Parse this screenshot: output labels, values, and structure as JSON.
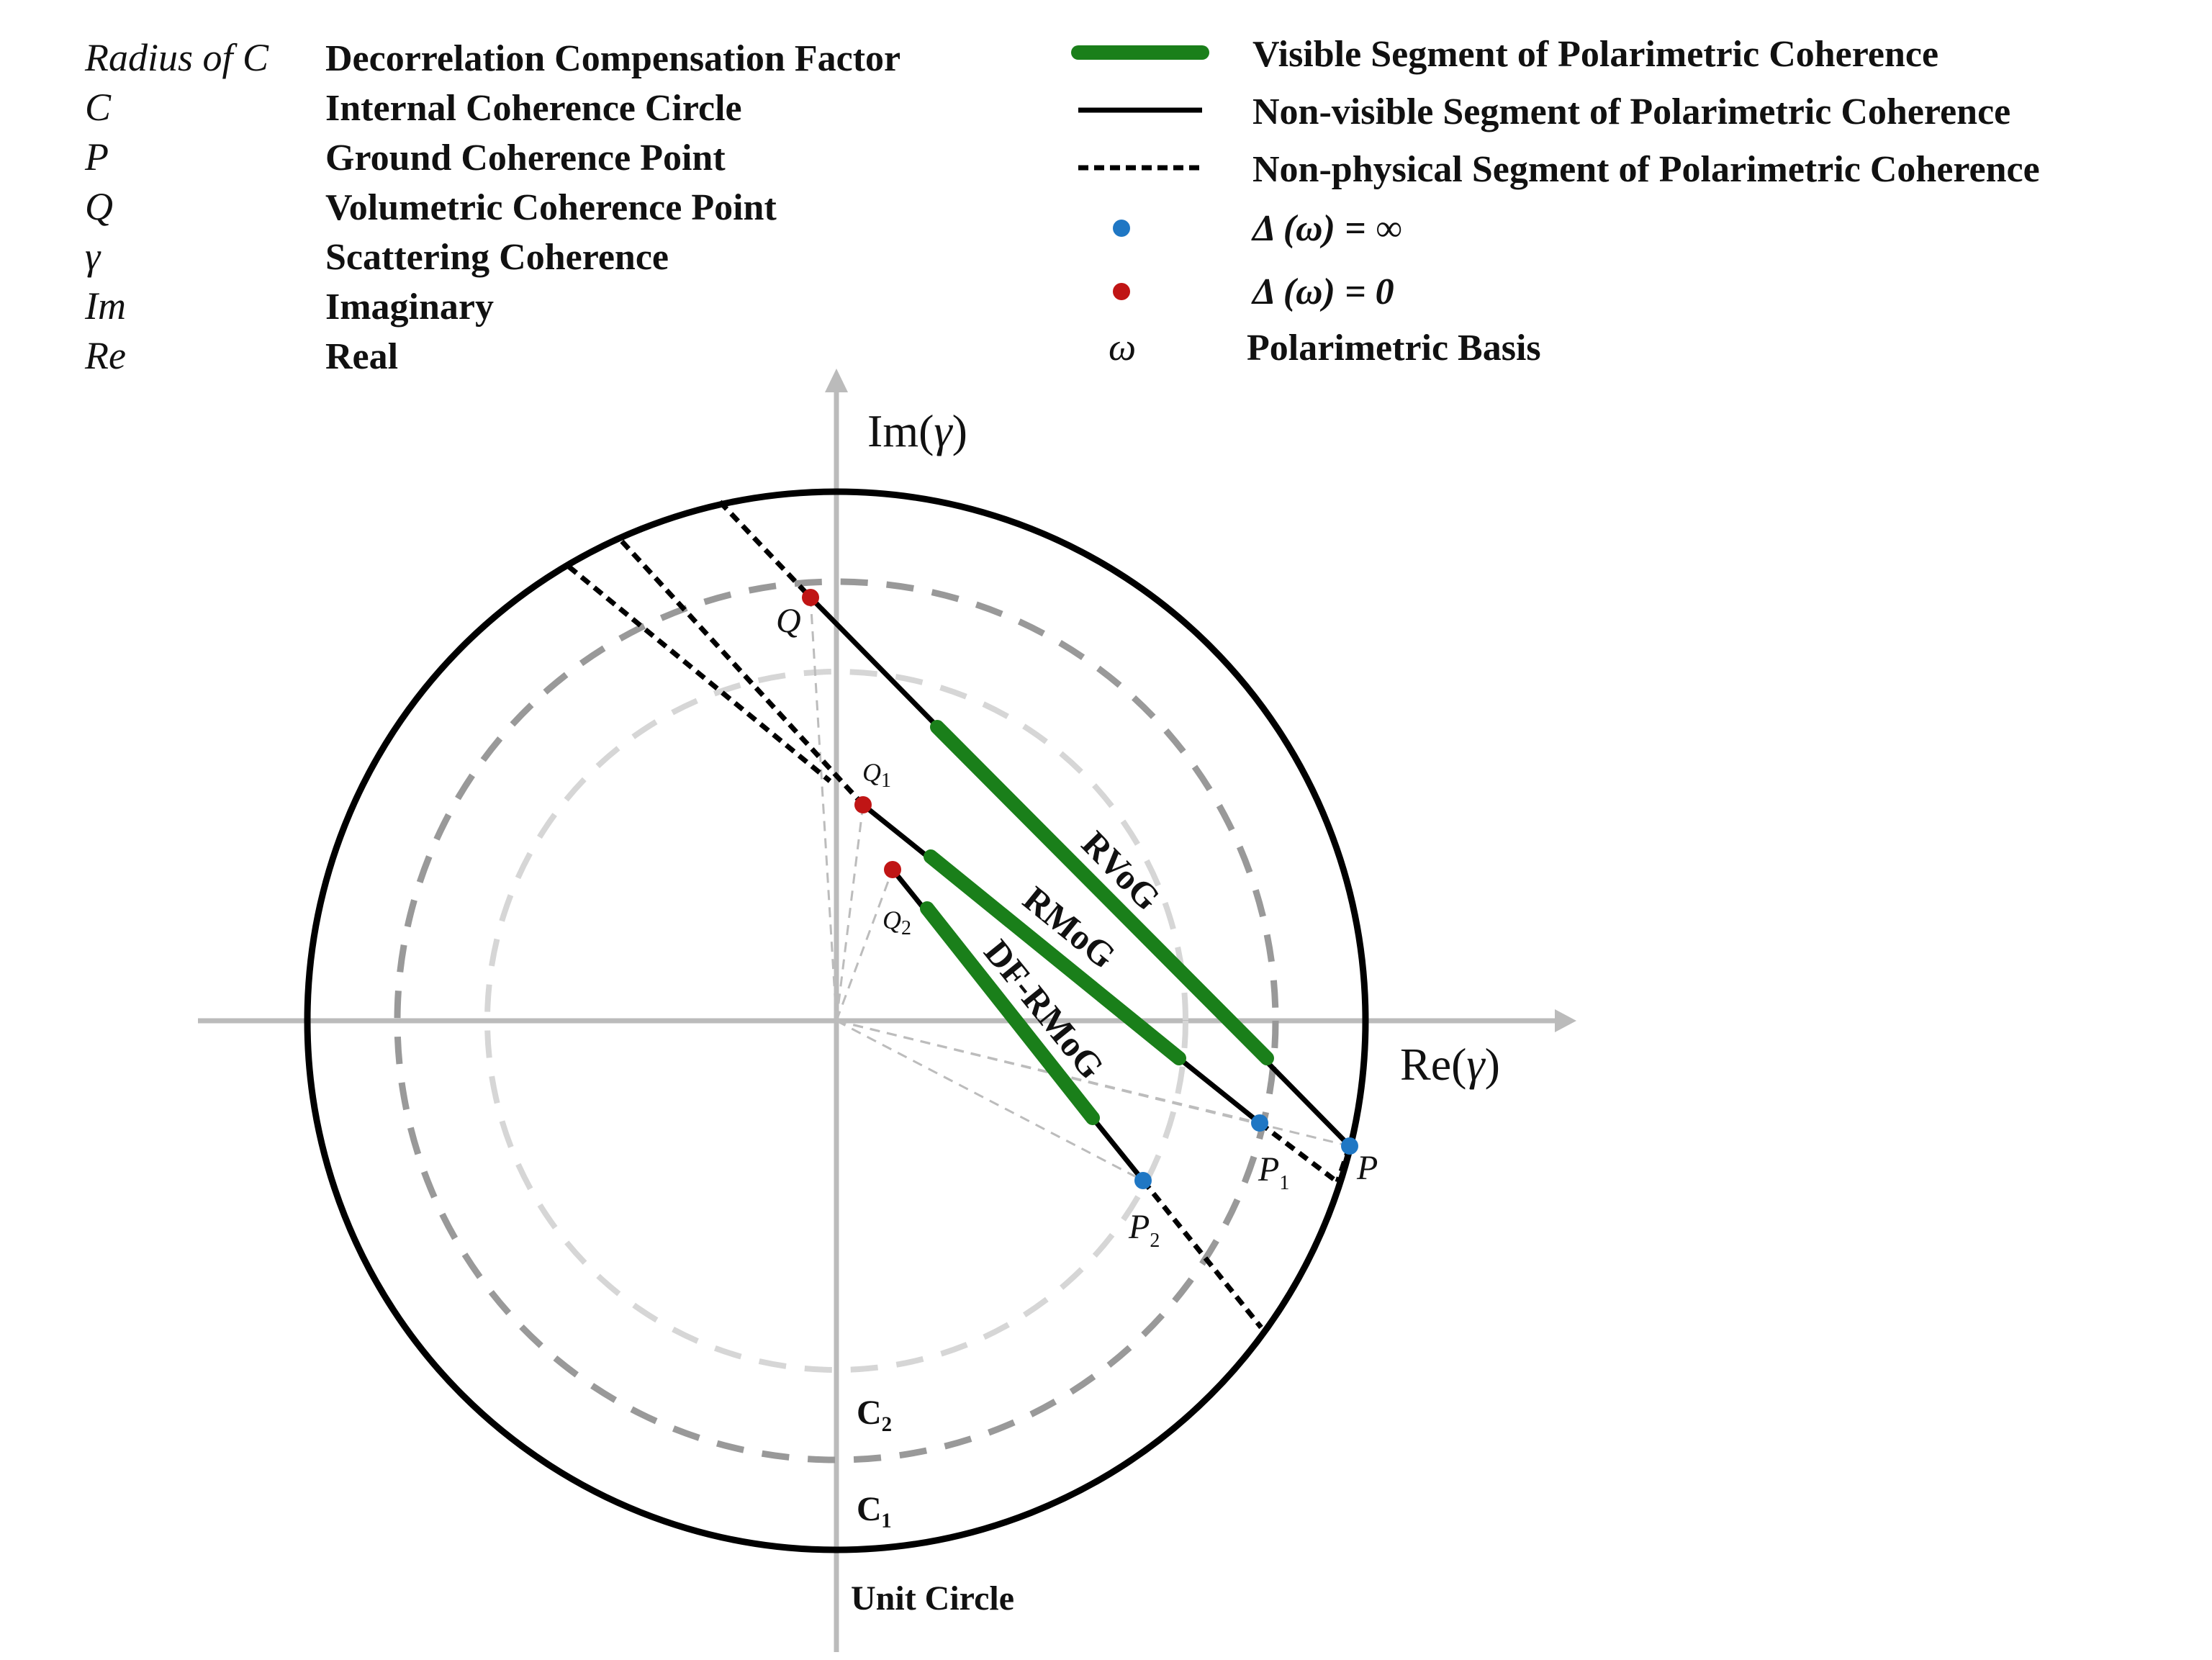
{
  "legend_left": [
    {
      "symbol": "Radius of C",
      "description": "Decorrelation Compensation Factor"
    },
    {
      "symbol": "C",
      "description": "Internal Coherence Circle"
    },
    {
      "symbol": "P",
      "description": "Ground Coherence Point"
    },
    {
      "symbol": "Q",
      "description": "Volumetric Coherence Point"
    },
    {
      "symbol": "γ",
      "description": "Scattering Coherence"
    },
    {
      "symbol": "Im",
      "description": "Imaginary"
    },
    {
      "symbol": "Re",
      "description": "Real"
    }
  ],
  "legend_right": [
    {
      "marker": "green-thick-line",
      "description": "Visible Segment of Polarimetric Coherence"
    },
    {
      "marker": "black-solid-line",
      "description": "Non-visible Segment of Polarimetric Coherence"
    },
    {
      "marker": "black-dashed-line",
      "description": "Non-physical Segment of Polarimetric Coherence"
    },
    {
      "marker": "blue-dot",
      "description": "Δ (ω) = ∞"
    },
    {
      "marker": "red-dot",
      "description": "Δ (ω) = 0"
    },
    {
      "marker": "omega-symbol",
      "symbol": "ω",
      "description": "Polarimetric Basis"
    }
  ],
  "axes": {
    "x_prefix": "Re(",
    "x_var": "γ",
    "x_suffix": ")",
    "y_prefix": "Im(",
    "y_var": "γ",
    "y_suffix": ")"
  },
  "circles": [
    {
      "label": "Unit Circle"
    },
    {
      "label": "C₁"
    },
    {
      "label": "C₂"
    }
  ],
  "models": [
    "RVoG",
    "RMoG",
    "DF-RMoG"
  ],
  "points": {
    "Q": "Q",
    "Q1_main": "Q",
    "Q1_sub": "1",
    "Q2_main": "Q",
    "Q2_sub": "2",
    "P": "P",
    "P1_main": "P",
    "P1_sub": "1",
    "P2_main": "P",
    "P2_sub": "2"
  },
  "colors": {
    "visible": "#1a7f1a",
    "line": "#000000",
    "axis": "#bbbbbb",
    "c1": "#999999",
    "c2": "#d6d6d6",
    "infinity_dot": "#1f77c4",
    "zero_dot": "#c01515"
  }
}
